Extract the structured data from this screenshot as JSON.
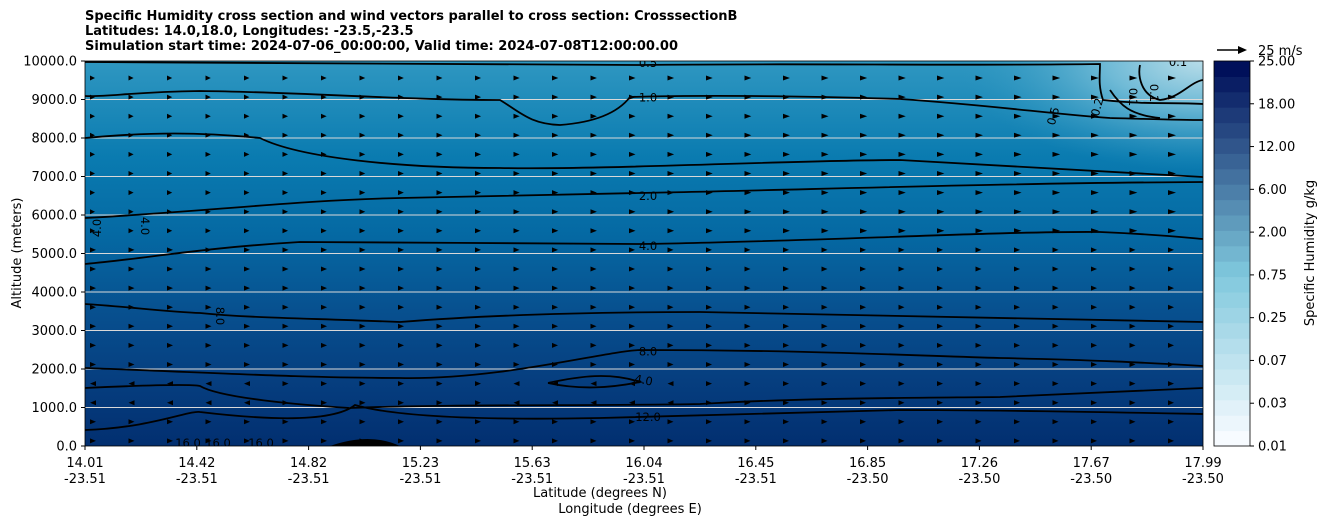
{
  "chart_data": {
    "type": "heatmap",
    "title_lines": [
      "Specific Humidity cross section and wind vectors parallel to cross section: CrosssectionB",
      "Latitudes: 14.0,18.0, Longitudes: -23.5,-23.5",
      "Simulation start time: 2024-07-06_00:00:00, Valid time: 2024-07-08T12:00:00.00"
    ],
    "ylabel": "Altitude (meters)",
    "xlabel_lat": "Latitude (degrees N)",
    "xlabel_lon": "Longitude (degrees E)",
    "ylim": [
      0,
      10000
    ],
    "yticks": [
      "0.0",
      "1000.0",
      "2000.0",
      "3000.0",
      "4000.0",
      "5000.0",
      "6000.0",
      "7000.0",
      "8000.0",
      "9000.0",
      "10000.0"
    ],
    "xticks_lat": [
      "14.01",
      "14.42",
      "14.82",
      "15.23",
      "15.63",
      "16.04",
      "16.45",
      "16.85",
      "17.26",
      "17.67",
      "17.99"
    ],
    "xticks_lon": [
      "-23.51",
      "-23.51",
      "-23.51",
      "-23.51",
      "-23.51",
      "-23.51",
      "-23.51",
      "-23.50",
      "-23.50",
      "-23.50",
      "-23.50"
    ],
    "colorbar_label": "Specific Humidity g/kg",
    "colorbar_ticks": [
      "0.01",
      "0.03",
      "0.07",
      "0.25",
      "0.75",
      "2.00",
      "6.00",
      "12.00",
      "18.00",
      "25.00"
    ],
    "colorbar_levels": 25,
    "colors": {
      "low": "#f7fbff",
      "mid": "#7ec7dc",
      "high": "#00105a",
      "lines": "#000000"
    },
    "contours": [
      {
        "label": "0.5",
        "alt": 9950
      },
      {
        "label": "1.0",
        "alt": 9050
      },
      {
        "label": "2.0",
        "alt": 6500
      },
      {
        "label": "4.0",
        "alt": 5200
      },
      {
        "label": "8.0",
        "alt": 2450
      },
      {
        "label": "12.0",
        "alt": 750
      }
    ],
    "contour_labels_extra": [
      "0.1",
      "0.1",
      "0.1",
      "0.2",
      "0.5",
      "4.0",
      "4.0",
      "8.0",
      "4.0",
      "16.0",
      "16.0",
      "16.0"
    ],
    "wind_key": {
      "label": "25 m/s",
      "speed": 25
    }
  }
}
